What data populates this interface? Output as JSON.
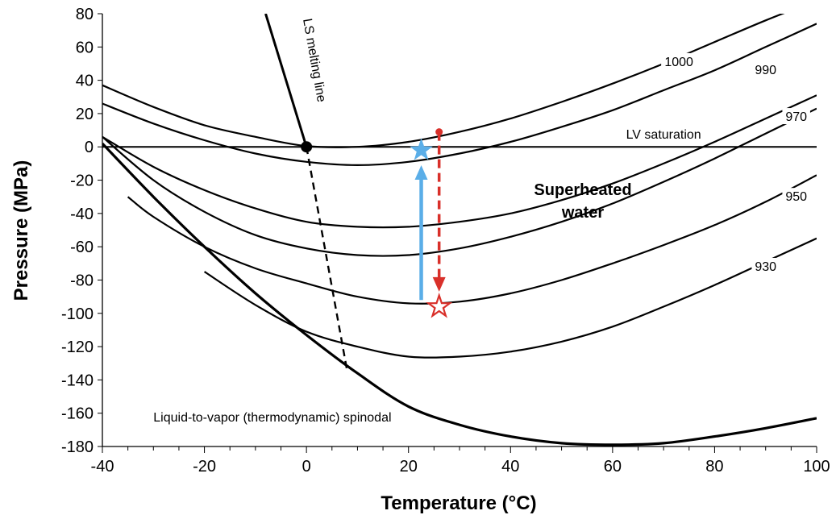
{
  "chart_data": {
    "type": "line",
    "title": "",
    "xlabel": "Temperature (°C)",
    "ylabel": "Pressure (MPa)",
    "xlim": [
      -40,
      100
    ],
    "ylim": [
      -180,
      80
    ],
    "xticks": [
      -40,
      -20,
      0,
      20,
      40,
      60,
      80,
      100
    ],
    "yticks": [
      80,
      60,
      40,
      20,
      0,
      -20,
      -40,
      -60,
      -80,
      -100,
      -120,
      -140,
      -160,
      -180
    ],
    "grid": false,
    "isochores": [
      {
        "label": "1000",
        "x": [
          -40,
          -30,
          -20,
          -10,
          0,
          10,
          20,
          30,
          40,
          50,
          60,
          70,
          80,
          90,
          100
        ],
        "y": [
          37,
          24,
          13,
          6,
          0.5,
          0,
          3,
          9,
          17,
          27,
          38,
          50,
          63,
          76,
          88
        ]
      },
      {
        "label": "990",
        "x": [
          -40,
          -30,
          -20,
          -10,
          0,
          10,
          20,
          30,
          40,
          50,
          60,
          70,
          80,
          90,
          100
        ],
        "y": [
          26,
          14,
          4,
          -4,
          -9,
          -11,
          -9,
          -4,
          3,
          12,
          22,
          34,
          46,
          60,
          74
        ]
      },
      {
        "label": "970",
        "x": [
          -40,
          -30,
          -20,
          -10,
          0,
          10,
          20,
          30,
          40,
          50,
          60,
          70,
          80,
          90,
          100
        ],
        "y": [
          6,
          -12,
          -26,
          -37,
          -45,
          -48,
          -48,
          -45,
          -40,
          -32,
          -22,
          -10,
          3,
          17,
          31
        ]
      },
      {
        "label": "950",
        "x": [
          -40,
          -30,
          -20,
          -10,
          0,
          10,
          20,
          30,
          40,
          50,
          60,
          70,
          80,
          90,
          100
        ],
        "y": [
          6,
          -20,
          -39,
          -53,
          -61,
          -65,
          -65,
          -61,
          -54,
          -45,
          -34,
          -21,
          -7,
          8,
          23
        ]
      },
      {
        "label": "",
        "x": [
          -35,
          -30,
          -20,
          -10,
          0,
          10,
          20,
          30,
          40,
          50,
          60,
          70,
          80,
          90,
          100
        ],
        "y": [
          -30,
          -42,
          -60,
          -73,
          -82,
          -90,
          -94,
          -93,
          -88,
          -80,
          -70,
          -59,
          -47,
          -33,
          -17
        ]
      },
      {
        "label": "930",
        "x": [
          -20,
          -10,
          0,
          10,
          20,
          30,
          40,
          50,
          60,
          70,
          80,
          90,
          100
        ],
        "y": [
          -75,
          -95,
          -111,
          -120,
          -126,
          -126,
          -123,
          -117,
          -108,
          -96,
          -83,
          -69,
          -55
        ]
      }
    ],
    "spinodal": {
      "label": "Liquid-to-vapor (thermodynamic) spinodal",
      "x": [
        -40,
        -30,
        -20,
        -10,
        0,
        10,
        20,
        30,
        40,
        50,
        60,
        70,
        80,
        90,
        100
      ],
      "y": [
        2,
        -30,
        -60,
        -88,
        -113,
        -136,
        -156,
        -167,
        -174,
        -178,
        -179,
        -178,
        -174,
        -169,
        -163
      ]
    },
    "saturation": {
      "label": "LV saturation",
      "y": 0
    },
    "melting_line": {
      "label": "LS melting line",
      "x": [
        -8,
        -4,
        0
      ],
      "y": [
        80,
        40,
        0
      ]
    },
    "melting_extension": {
      "x": [
        0,
        8
      ],
      "y": [
        0,
        -135
      ]
    },
    "triple_point": {
      "x": 0,
      "y": 0
    },
    "region_label": [
      "Superheated",
      "water"
    ],
    "blue_path": {
      "x": 22.5,
      "y_start": -92,
      "y_end": -12,
      "star": [
        22.5,
        -2
      ],
      "color": "#5aaee8"
    },
    "red_path": {
      "x": 26,
      "y_start": 9,
      "y_end": -86,
      "star": [
        26,
        -96
      ],
      "color": "#d9302a"
    },
    "label_positions": {
      "1000": [
        73,
        51
      ],
      "990": [
        90,
        46
      ],
      "970": [
        96,
        18
      ],
      "950": [
        96,
        -30
      ],
      "930": [
        90,
        -72
      ],
      "sat": [
        70,
        5
      ],
      "spinodal": [
        -30,
        -165
      ]
    }
  }
}
